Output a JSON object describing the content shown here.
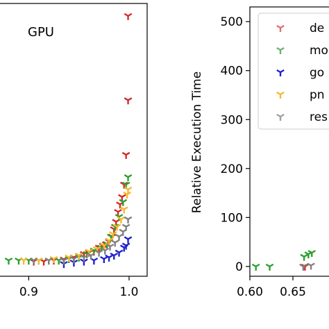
{
  "chart_data": [
    {
      "type": "scatter",
      "panel_label": "GPU",
      "xlabel": "",
      "ylabel": "",
      "xlim": [
        0.87,
        1.018
      ],
      "ylim": [
        -20,
        530
      ],
      "xticks": [
        "0.9",
        "1.0"
      ],
      "xtick_values": [
        0.9,
        1.0
      ],
      "series": [
        {
          "color": "#d62728",
          "marker": "tri-down",
          "points": [
            [
              0.999,
              505
            ],
            [
              0.999,
              335
            ],
            [
              0.997,
              225
            ],
            [
              0.995,
              165
            ],
            [
              0.993,
              140
            ],
            [
              0.991,
              125
            ],
            [
              0.989,
              110
            ],
            [
              0.987,
              90
            ],
            [
              0.985,
              75
            ],
            [
              0.983,
              60
            ],
            [
              0.98,
              50
            ],
            [
              0.977,
              45
            ],
            [
              0.974,
              42
            ],
            [
              0.97,
              38
            ],
            [
              0.965,
              30
            ],
            [
              0.96,
              28
            ],
            [
              0.955,
              25
            ],
            [
              0.95,
              22
            ],
            [
              0.945,
              18
            ],
            [
              0.935,
              14
            ],
            [
              0.925,
              12
            ],
            [
              0.915,
              10
            ],
            [
              0.905,
              10
            ]
          ]
        },
        {
          "color": "#2ca02c",
          "marker": "tri-down",
          "points": [
            [
              0.999,
              180
            ],
            [
              0.997,
              165
            ],
            [
              0.994,
              130
            ],
            [
              0.99,
              100
            ],
            [
              0.986,
              80
            ],
            [
              0.982,
              60
            ],
            [
              0.978,
              45
            ],
            [
              0.972,
              38
            ],
            [
              0.965,
              32
            ],
            [
              0.958,
              25
            ],
            [
              0.95,
              18
            ],
            [
              0.94,
              15
            ],
            [
              0.93,
              12
            ],
            [
              0.92,
              12
            ],
            [
              0.91,
              12
            ],
            [
              0.9,
              12
            ],
            [
              0.89,
              12
            ],
            [
              0.88,
              12
            ]
          ]
        },
        {
          "color": "#2222cc",
          "marker": "tri-down",
          "points": [
            [
              0.999,
              55
            ],
            [
              0.997,
              42
            ],
            [
              0.995,
              38
            ],
            [
              0.99,
              28
            ],
            [
              0.985,
              22
            ],
            [
              0.98,
              18
            ],
            [
              0.975,
              15
            ],
            [
              0.965,
              12
            ],
            [
              0.955,
              10
            ],
            [
              0.945,
              8
            ],
            [
              0.935,
              5
            ]
          ]
        },
        {
          "color": "#f5b82e",
          "marker": "tri-down",
          "points": [
            [
              0.999,
              155
            ],
            [
              0.998,
              145
            ],
            [
              0.995,
              115
            ],
            [
              0.992,
              95
            ],
            [
              0.988,
              80
            ],
            [
              0.984,
              65
            ],
            [
              0.98,
              52
            ],
            [
              0.975,
              42
            ],
            [
              0.968,
              35
            ],
            [
              0.96,
              30
            ],
            [
              0.95,
              22
            ],
            [
              0.94,
              18
            ],
            [
              0.925,
              15
            ],
            [
              0.91,
              12
            ],
            [
              0.895,
              12
            ]
          ]
        },
        {
          "color": "#808080",
          "marker": "tri-down",
          "points": [
            [
              0.999,
              95
            ],
            [
              0.997,
              80
            ],
            [
              0.994,
              70
            ],
            [
              0.99,
              60
            ],
            [
              0.986,
              48
            ],
            [
              0.981,
              40
            ],
            [
              0.976,
              32
            ],
            [
              0.97,
              28
            ],
            [
              0.962,
              22
            ],
            [
              0.955,
              18
            ],
            [
              0.945,
              15
            ],
            [
              0.935,
              12
            ],
            [
              0.92,
              12
            ],
            [
              0.905,
              12
            ]
          ]
        }
      ]
    },
    {
      "type": "scatter",
      "panel_label": "",
      "xlabel": "",
      "ylabel": "Relative Execution Time",
      "xlim": [
        0.6,
        0.7
      ],
      "ylim": [
        -20,
        530
      ],
      "xticks": [
        "0.60",
        "0.65"
      ],
      "xtick_values": [
        0.6,
        0.65
      ],
      "yticks": [
        "0",
        "100",
        "200",
        "300",
        "400",
        "500"
      ],
      "ytick_values": [
        0,
        100,
        200,
        300,
        400,
        500
      ],
      "legend": {
        "placement": "top-right",
        "entries": [
          {
            "label": "de",
            "color": "#e07070"
          },
          {
            "label": "mo",
            "color": "#70b070"
          },
          {
            "label": "go",
            "color": "#2222cc"
          },
          {
            "label": "pn",
            "color": "#f5b82e"
          },
          {
            "label": "res",
            "color": "#a0a0a0"
          }
        ]
      },
      "series": [
        {
          "color": "#2ca02c",
          "marker": "tri-down",
          "points": [
            [
              0.607,
              0
            ],
            [
              0.623,
              0
            ],
            [
              0.663,
              20
            ],
            [
              0.668,
              25
            ],
            [
              0.672,
              28
            ]
          ]
        },
        {
          "color": "#d62728",
          "marker": "tri-down",
          "points": [
            [
              0.664,
              0
            ]
          ]
        },
        {
          "color": "#808080",
          "marker": "tri-down",
          "points": [
            [
              0.662,
              0
            ],
            [
              0.671,
              2
            ]
          ]
        }
      ]
    }
  ]
}
